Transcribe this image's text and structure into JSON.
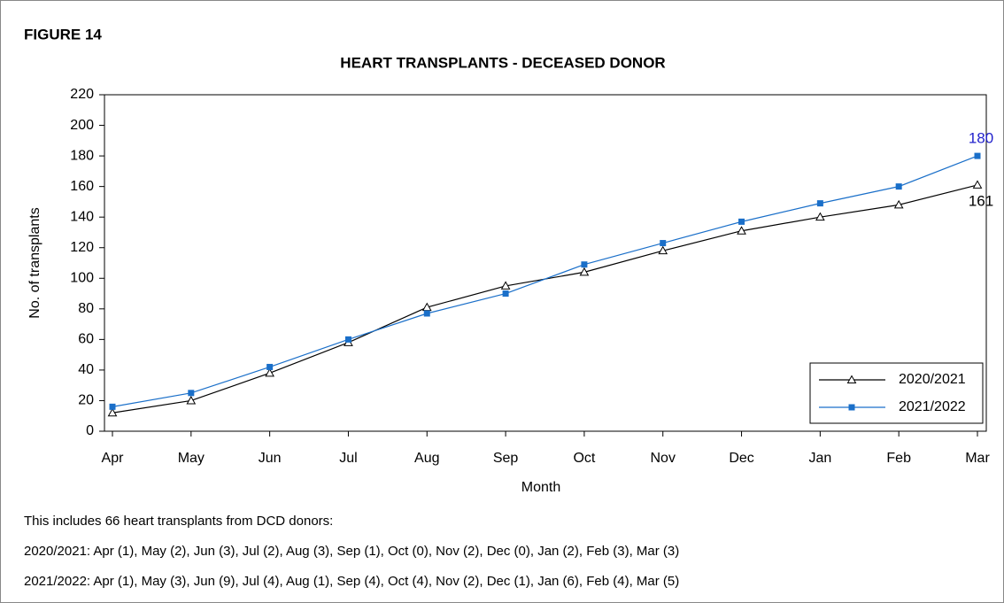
{
  "figure_label": "FIGURE 14",
  "chart_data": {
    "type": "line",
    "title": "HEART TRANSPLANTS - DECEASED DONOR",
    "x_label": "Month",
    "y_label": "No. of transplants",
    "categories": [
      "Apr",
      "May",
      "Jun",
      "Jul",
      "Aug",
      "Sep",
      "Oct",
      "Nov",
      "Dec",
      "Jan",
      "Feb",
      "Mar"
    ],
    "series": [
      {
        "name": "2020/2021",
        "color": "#000000",
        "marker": "triangle",
        "values": [
          12,
          20,
          38,
          58,
          81,
          95,
          104,
          118,
          131,
          140,
          148,
          161
        ]
      },
      {
        "name": "2021/2022",
        "color": "#1a6fc9",
        "marker": "square",
        "values": [
          16,
          25,
          42,
          60,
          77,
          90,
          109,
          123,
          137,
          149,
          160,
          180
        ]
      }
    ],
    "ylim": [
      0,
      220
    ],
    "yticks": [
      0,
      20,
      40,
      60,
      80,
      100,
      120,
      140,
      160,
      180,
      200,
      220
    ],
    "grid": false,
    "legend": "lower right"
  },
  "notes": [
    "This includes 66 heart transplants from DCD donors:",
    "2020/2021: Apr (1), May (2), Jun (3), Jul (2), Aug (3), Sep (1), Oct (0), Nov (2), Dec (0), Jan (2), Feb (3), Mar (3)",
    "2021/2022: Apr (1), May (3), Jun (9), Jul (4), Aug (1), Sep (4), Oct (4), Nov (2), Dec (1), Jan (6), Feb (4), Mar (5)"
  ]
}
